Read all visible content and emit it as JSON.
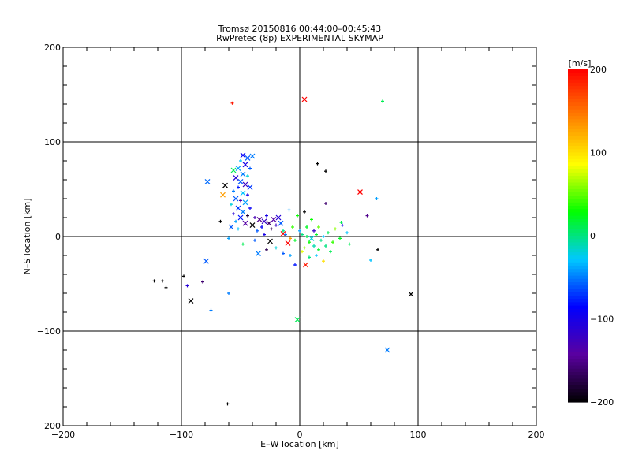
{
  "chart_data": {
    "type": "scatter",
    "title": "Tromsø 20150816 00:44:00–00:45:43",
    "subtitle": "RwPretec (8p) EXPERIMENTAL SKYMAP",
    "xlabel": "E–W location [km]",
    "ylabel": "N–S location [km]",
    "xlim": [
      -200,
      200
    ],
    "ylim": [
      -200,
      200
    ],
    "xticks": [
      -200,
      -100,
      0,
      100,
      200
    ],
    "yticks": [
      -200,
      -100,
      0,
      100,
      200
    ],
    "xtick_labels": [
      "−200",
      "−100",
      "0",
      "100",
      "200"
    ],
    "ytick_labels": [
      "−200",
      "−100",
      "0",
      "100",
      "200"
    ],
    "grid": true,
    "colorbar": {
      "label": "[m/s]",
      "range": [
        -200,
        200
      ],
      "ticks": [
        200,
        100,
        0,
        -100,
        -200
      ],
      "tick_labels": [
        "200",
        "100",
        "0",
        "−100",
        "−200"
      ],
      "colors": [
        "#000000",
        "#5a00a0",
        "#0000ff",
        "#00c8ff",
        "#00ff00",
        "#ffff00",
        "#ff8000",
        "#ff0000"
      ]
    },
    "point_format": [
      "x_km",
      "y_km",
      "velocity_m_s",
      "marker(+ or x)"
    ],
    "points": [
      [
        -57,
        141,
        190,
        "+"
      ],
      [
        4,
        145,
        200,
        "x"
      ],
      [
        70,
        143,
        10,
        "+"
      ],
      [
        15,
        77,
        -200,
        "+"
      ],
      [
        22,
        69,
        -200,
        "+"
      ],
      [
        -78,
        58,
        -55,
        "x"
      ],
      [
        -63,
        54,
        -200,
        "x"
      ],
      [
        -65,
        44,
        130,
        "x"
      ],
      [
        51,
        47,
        200,
        "x"
      ],
      [
        65,
        40,
        -40,
        "+"
      ],
      [
        -67,
        16,
        -200,
        "+"
      ],
      [
        -123,
        -47,
        -200,
        "+"
      ],
      [
        -116,
        -47,
        -200,
        "+"
      ],
      [
        -113,
        -54,
        -200,
        "+"
      ],
      [
        -98,
        -42,
        -200,
        "+"
      ],
      [
        -92,
        -68,
        -200,
        "x"
      ],
      [
        -82,
        -48,
        -160,
        "+"
      ],
      [
        -95,
        -52,
        -110,
        "+"
      ],
      [
        -60,
        -60,
        -50,
        "+"
      ],
      [
        -75,
        -78,
        -50,
        "+"
      ],
      [
        -79,
        -26,
        -60,
        "x"
      ],
      [
        -35,
        -18,
        -50,
        "x"
      ],
      [
        -2,
        -88,
        10,
        "x"
      ],
      [
        94,
        -61,
        -200,
        "x"
      ],
      [
        74,
        -120,
        -50,
        "x"
      ],
      [
        -61,
        -177,
        -200,
        "+"
      ],
      [
        66,
        -14,
        -200,
        "+"
      ],
      [
        60,
        -25,
        -30,
        "+"
      ],
      [
        5,
        -30,
        190,
        "x"
      ],
      [
        -10,
        -7,
        200,
        "x"
      ],
      [
        -25,
        -5,
        -200,
        "x"
      ],
      [
        35,
        15,
        10,
        "+"
      ],
      [
        57,
        22,
        -150,
        "+"
      ],
      [
        -14,
        3,
        200,
        "x"
      ],
      [
        22,
        35,
        -160,
        "+"
      ],
      [
        -48,
        86,
        -90,
        "x"
      ],
      [
        -44,
        83,
        -60,
        "x"
      ],
      [
        -40,
        85,
        -50,
        "x"
      ],
      [
        -50,
        80,
        -30,
        "+"
      ],
      [
        -46,
        76,
        -100,
        "x"
      ],
      [
        -52,
        72,
        -40,
        "x"
      ],
      [
        -56,
        70,
        10,
        "x"
      ],
      [
        -42,
        72,
        -60,
        "+"
      ],
      [
        -48,
        66,
        -50,
        "x"
      ],
      [
        -54,
        62,
        -110,
        "x"
      ],
      [
        -44,
        64,
        -20,
        "+"
      ],
      [
        -50,
        58,
        -60,
        "x"
      ],
      [
        -46,
        55,
        -120,
        "x"
      ],
      [
        -52,
        52,
        -80,
        "+"
      ],
      [
        -42,
        52,
        -70,
        "x"
      ],
      [
        -56,
        48,
        -50,
        "+"
      ],
      [
        -48,
        46,
        -30,
        "x"
      ],
      [
        -44,
        44,
        -100,
        "+"
      ],
      [
        -54,
        40,
        -60,
        "x"
      ],
      [
        -50,
        38,
        -130,
        "+"
      ],
      [
        -46,
        36,
        -40,
        "x"
      ],
      [
        -58,
        34,
        -20,
        "+"
      ],
      [
        -52,
        30,
        -70,
        "x"
      ],
      [
        -42,
        30,
        -90,
        "+"
      ],
      [
        -48,
        26,
        -50,
        "x"
      ],
      [
        -56,
        24,
        -110,
        "+"
      ],
      [
        -44,
        22,
        -180,
        "+"
      ],
      [
        -50,
        20,
        -80,
        "x"
      ],
      [
        -54,
        16,
        -40,
        "+"
      ],
      [
        -46,
        14,
        -140,
        "x"
      ],
      [
        -58,
        10,
        -60,
        "x"
      ],
      [
        -40,
        12,
        -200,
        "x"
      ],
      [
        -52,
        8,
        -30,
        "+"
      ],
      [
        -60,
        -2,
        -40,
        "+"
      ],
      [
        -48,
        -8,
        10,
        "+"
      ],
      [
        -38,
        20,
        -130,
        "+"
      ],
      [
        -34,
        18,
        -150,
        "x"
      ],
      [
        -30,
        16,
        -120,
        "x"
      ],
      [
        -28,
        22,
        -100,
        "+"
      ],
      [
        -26,
        14,
        -160,
        "x"
      ],
      [
        -22,
        18,
        -140,
        "x"
      ],
      [
        -20,
        12,
        -120,
        "+"
      ],
      [
        -18,
        20,
        -110,
        "x"
      ],
      [
        -24,
        8,
        -170,
        "+"
      ],
      [
        -32,
        10,
        -90,
        "+"
      ],
      [
        -36,
        6,
        -60,
        "+"
      ],
      [
        -16,
        14,
        -60,
        "x"
      ],
      [
        -14,
        6,
        0,
        "+"
      ],
      [
        -12,
        2,
        -50,
        "+"
      ],
      [
        -30,
        2,
        -100,
        "+"
      ],
      [
        -38,
        -4,
        -60,
        "+"
      ],
      [
        -28,
        -14,
        -170,
        "+"
      ],
      [
        -20,
        -12,
        -20,
        "+"
      ],
      [
        -8,
        -20,
        -40,
        "+"
      ],
      [
        -4,
        -30,
        -80,
        "+"
      ],
      [
        2,
        2,
        0,
        "+"
      ],
      [
        6,
        0,
        10,
        "+"
      ],
      [
        10,
        -2,
        -20,
        "x"
      ],
      [
        14,
        2,
        20,
        "+"
      ],
      [
        18,
        -4,
        0,
        "+"
      ],
      [
        8,
        -6,
        30,
        "+"
      ],
      [
        12,
        -10,
        -10,
        "+"
      ],
      [
        4,
        -12,
        60,
        "+"
      ],
      [
        16,
        -14,
        20,
        "+"
      ],
      [
        20,
        0,
        -30,
        "+"
      ],
      [
        24,
        4,
        10,
        "+"
      ],
      [
        28,
        -6,
        40,
        "+"
      ],
      [
        22,
        -10,
        0,
        "+"
      ],
      [
        30,
        8,
        60,
        "+"
      ],
      [
        34,
        -2,
        20,
        "+"
      ],
      [
        0,
        6,
        -40,
        "+"
      ],
      [
        -4,
        -4,
        20,
        "+"
      ],
      [
        2,
        -16,
        80,
        "+"
      ],
      [
        8,
        -22,
        0,
        "+"
      ],
      [
        14,
        -20,
        -30,
        "+"
      ],
      [
        26,
        -16,
        10,
        "+"
      ],
      [
        20,
        -26,
        100,
        "+"
      ],
      [
        12,
        6,
        -120,
        "+"
      ],
      [
        16,
        10,
        50,
        "+"
      ],
      [
        6,
        10,
        20,
        "+"
      ],
      [
        -6,
        10,
        40,
        "+"
      ],
      [
        -2,
        22,
        30,
        "+"
      ],
      [
        10,
        18,
        30,
        "+"
      ],
      [
        -9,
        28,
        -40,
        "+"
      ],
      [
        4,
        26,
        -200,
        "+"
      ],
      [
        40,
        4,
        -30,
        "+"
      ],
      [
        42,
        -8,
        10,
        "+"
      ],
      [
        36,
        12,
        -100,
        "+"
      ],
      [
        -8,
        -2,
        130,
        "+"
      ],
      [
        -14,
        -18,
        -60,
        "+"
      ]
    ]
  }
}
